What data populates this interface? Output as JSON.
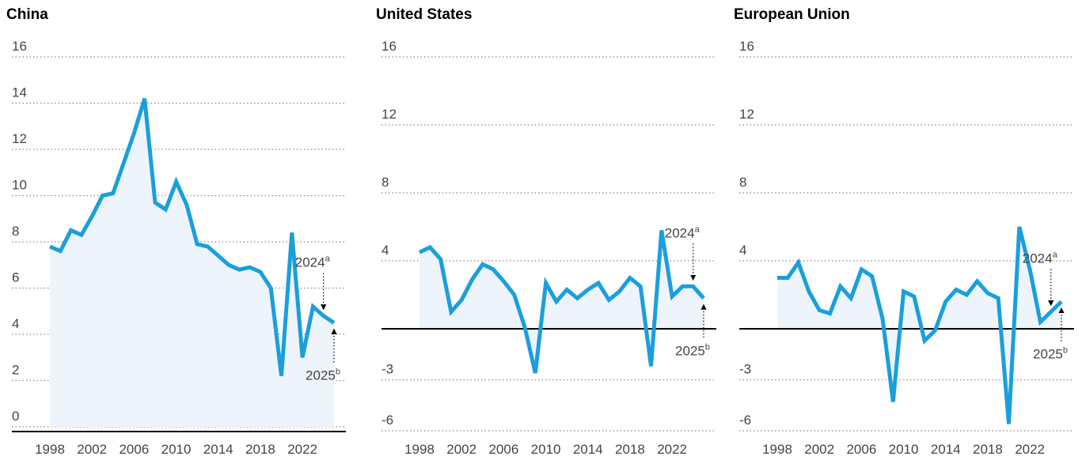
{
  "chart_data": [
    {
      "type": "line",
      "title": "China",
      "color": "#1a9fdc",
      "area_color": "#eef4fb",
      "x": [
        1998,
        1999,
        2000,
        2001,
        2002,
        2003,
        2004,
        2005,
        2006,
        2007,
        2008,
        2009,
        2010,
        2011,
        2012,
        2013,
        2014,
        2015,
        2016,
        2017,
        2018,
        2019,
        2020,
        2021,
        2022,
        2023,
        2024,
        2025
      ],
      "values": [
        7.8,
        7.6,
        8.5,
        8.3,
        9.1,
        10.0,
        10.1,
        11.4,
        12.7,
        14.2,
        9.7,
        9.4,
        10.6,
        9.6,
        7.9,
        7.8,
        7.4,
        7.0,
        6.8,
        6.9,
        6.7,
        6.0,
        2.2,
        8.4,
        3.0,
        5.2,
        4.8,
        4.5
      ],
      "xticks": [
        1998,
        2002,
        2006,
        2010,
        2014,
        2018,
        2022
      ],
      "ylim": [
        0,
        16
      ],
      "yticks": [
        0,
        2,
        4,
        6,
        8,
        10,
        12,
        14,
        16
      ],
      "annotations": [
        {
          "text": "2024",
          "sup": "a"
        },
        {
          "text": "2025",
          "sup": "b"
        }
      ]
    },
    {
      "type": "line",
      "title": "United States",
      "color": "#1a9fdc",
      "area_color": "#eef4fb",
      "x": [
        1998,
        1999,
        2000,
        2001,
        2002,
        2003,
        2004,
        2005,
        2006,
        2007,
        2008,
        2009,
        2010,
        2011,
        2012,
        2013,
        2014,
        2015,
        2016,
        2017,
        2018,
        2019,
        2020,
        2021,
        2022,
        2023,
        2024,
        2025
      ],
      "values": [
        4.5,
        4.8,
        4.1,
        1.0,
        1.7,
        2.9,
        3.8,
        3.5,
        2.8,
        2.0,
        0.1,
        -2.6,
        2.7,
        1.6,
        2.3,
        1.8,
        2.3,
        2.7,
        1.7,
        2.2,
        3.0,
        2.5,
        -2.2,
        5.8,
        1.9,
        2.5,
        2.5,
        1.8
      ],
      "xticks": [
        1998,
        2002,
        2006,
        2010,
        2014,
        2018,
        2022
      ],
      "ylim": [
        -6,
        16
      ],
      "yticks": [
        -6,
        -3,
        4,
        8,
        12,
        16
      ],
      "annotations": [
        {
          "text": "2024",
          "sup": "a"
        },
        {
          "text": "2025",
          "sup": "b"
        }
      ]
    },
    {
      "type": "line",
      "title": "European Union",
      "color": "#1a9fdc",
      "area_color": "#eef4fb",
      "x": [
        1998,
        1999,
        2000,
        2001,
        2002,
        2003,
        2004,
        2005,
        2006,
        2007,
        2008,
        2009,
        2010,
        2011,
        2012,
        2013,
        2014,
        2015,
        2016,
        2017,
        2018,
        2019,
        2020,
        2021,
        2022,
        2023,
        2024,
        2025
      ],
      "values": [
        3.0,
        3.0,
        3.9,
        2.2,
        1.1,
        0.9,
        2.5,
        1.8,
        3.5,
        3.1,
        0.6,
        -4.3,
        2.2,
        1.9,
        -0.7,
        -0.1,
        1.6,
        2.3,
        2.0,
        2.8,
        2.1,
        1.8,
        -5.6,
        6.0,
        3.5,
        0.4,
        1.0,
        1.6
      ],
      "xticks": [
        1998,
        2002,
        2006,
        2010,
        2014,
        2018,
        2022
      ],
      "ylim": [
        -6,
        16
      ],
      "yticks": [
        -6,
        -3,
        4,
        8,
        12,
        16
      ],
      "annotations": [
        {
          "text": "2024",
          "sup": "a"
        },
        {
          "text": "2025",
          "sup": "b"
        }
      ]
    }
  ]
}
